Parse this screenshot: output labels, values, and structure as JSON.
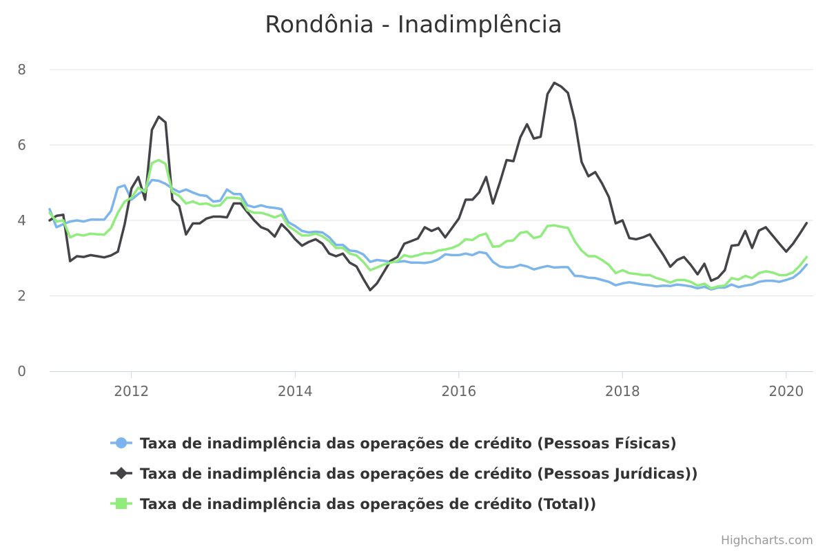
{
  "chart_data": {
    "type": "line",
    "title": "Rondônia - Inadimplência",
    "xlabel": "",
    "ylabel": "",
    "xlim": [
      2011.0,
      2020.33
    ],
    "ylim": [
      0,
      8
    ],
    "y_ticks": [
      "0",
      "2",
      "4",
      "6",
      "8"
    ],
    "x_ticks": [
      "2012",
      "2014",
      "2016",
      "2018",
      "2020"
    ],
    "grid": true,
    "legend_position": "bottom",
    "credits": "Highcharts.com",
    "series": [
      {
        "name": "Taxa de inadimplência das operações de crédito (Pessoas Físicas)",
        "color": "#7cb5ec",
        "marker": "circle",
        "values": [
          4.3,
          3.82,
          3.9,
          3.97,
          4.0,
          3.97,
          4.02,
          4.02,
          4.02,
          4.25,
          4.87,
          4.93,
          4.55,
          4.7,
          4.82,
          5.07,
          5.05,
          4.97,
          4.85,
          4.75,
          4.82,
          4.74,
          4.67,
          4.65,
          4.5,
          4.52,
          4.82,
          4.7,
          4.7,
          4.4,
          4.35,
          4.4,
          4.35,
          4.33,
          4.3,
          3.95,
          3.85,
          3.72,
          3.68,
          3.7,
          3.68,
          3.55,
          3.35,
          3.35,
          3.2,
          3.18,
          3.1,
          2.9,
          2.95,
          2.93,
          2.9,
          2.9,
          2.92,
          2.88,
          2.88,
          2.87,
          2.9,
          2.97,
          3.1,
          3.08,
          3.08,
          3.12,
          3.08,
          3.16,
          3.13,
          2.9,
          2.78,
          2.75,
          2.76,
          2.82,
          2.78,
          2.7,
          2.75,
          2.79,
          2.75,
          2.76,
          2.76,
          2.53,
          2.52,
          2.48,
          2.47,
          2.42,
          2.37,
          2.28,
          2.33,
          2.36,
          2.33,
          2.3,
          2.28,
          2.25,
          2.27,
          2.26,
          2.3,
          2.28,
          2.25,
          2.2,
          2.24,
          2.17,
          2.22,
          2.22,
          2.3,
          2.23,
          2.27,
          2.3,
          2.37,
          2.4,
          2.4,
          2.37,
          2.42,
          2.48,
          2.62,
          2.83
        ]
      },
      {
        "name": "Taxa de inadimplência das operações de crédito (Pessoas Jurídicas))",
        "color": "#434348",
        "marker": "diamond",
        "values": [
          4.0,
          4.12,
          4.15,
          2.92,
          3.05,
          3.03,
          3.08,
          3.05,
          3.02,
          3.07,
          3.17,
          3.9,
          4.85,
          5.15,
          4.55,
          6.4,
          6.75,
          6.6,
          4.55,
          4.38,
          3.63,
          3.92,
          3.92,
          4.05,
          4.1,
          4.1,
          4.08,
          4.45,
          4.45,
          4.22,
          4.0,
          3.82,
          3.75,
          3.57,
          3.9,
          3.72,
          3.5,
          3.33,
          3.43,
          3.5,
          3.38,
          3.12,
          3.05,
          3.12,
          2.88,
          2.78,
          2.45,
          2.15,
          2.33,
          2.63,
          2.93,
          3.03,
          3.38,
          3.45,
          3.52,
          3.82,
          3.72,
          3.8,
          3.55,
          3.8,
          4.05,
          4.55,
          4.55,
          4.75,
          5.15,
          4.45,
          5.0,
          5.6,
          5.57,
          6.2,
          6.55,
          6.17,
          6.22,
          7.35,
          7.65,
          7.55,
          7.38,
          6.65,
          5.55,
          5.17,
          5.28,
          4.98,
          4.62,
          3.92,
          4.0,
          3.53,
          3.5,
          3.55,
          3.63,
          3.35,
          3.08,
          2.77,
          2.95,
          3.03,
          2.82,
          2.57,
          2.85,
          2.4,
          2.48,
          2.68,
          3.33,
          3.35,
          3.72,
          3.27,
          3.73,
          3.82,
          3.6,
          3.38,
          3.17,
          3.38,
          3.65,
          3.93
        ]
      },
      {
        "name": "Taxa de inadimplência das operações de crédito (Total))",
        "color": "#90ed7d",
        "marker": "square",
        "values": [
          4.2,
          3.97,
          4.0,
          3.55,
          3.63,
          3.6,
          3.65,
          3.63,
          3.62,
          3.8,
          4.2,
          4.5,
          4.6,
          4.87,
          4.75,
          5.52,
          5.6,
          5.5,
          4.75,
          4.65,
          4.45,
          4.5,
          4.43,
          4.45,
          4.38,
          4.4,
          4.6,
          4.6,
          4.58,
          4.27,
          4.2,
          4.2,
          4.15,
          4.08,
          4.15,
          3.85,
          3.73,
          3.6,
          3.6,
          3.65,
          3.58,
          3.45,
          3.27,
          3.27,
          3.12,
          3.07,
          2.9,
          2.68,
          2.75,
          2.83,
          2.88,
          2.92,
          3.08,
          3.03,
          3.08,
          3.13,
          3.13,
          3.2,
          3.23,
          3.27,
          3.35,
          3.5,
          3.48,
          3.6,
          3.65,
          3.3,
          3.32,
          3.45,
          3.47,
          3.67,
          3.7,
          3.53,
          3.58,
          3.85,
          3.87,
          3.83,
          3.8,
          3.45,
          3.2,
          3.05,
          3.05,
          2.95,
          2.82,
          2.6,
          2.68,
          2.6,
          2.58,
          2.55,
          2.55,
          2.47,
          2.42,
          2.35,
          2.42,
          2.42,
          2.37,
          2.27,
          2.32,
          2.2,
          2.25,
          2.27,
          2.47,
          2.43,
          2.53,
          2.47,
          2.6,
          2.65,
          2.62,
          2.55,
          2.55,
          2.62,
          2.8,
          3.03
        ]
      }
    ]
  }
}
